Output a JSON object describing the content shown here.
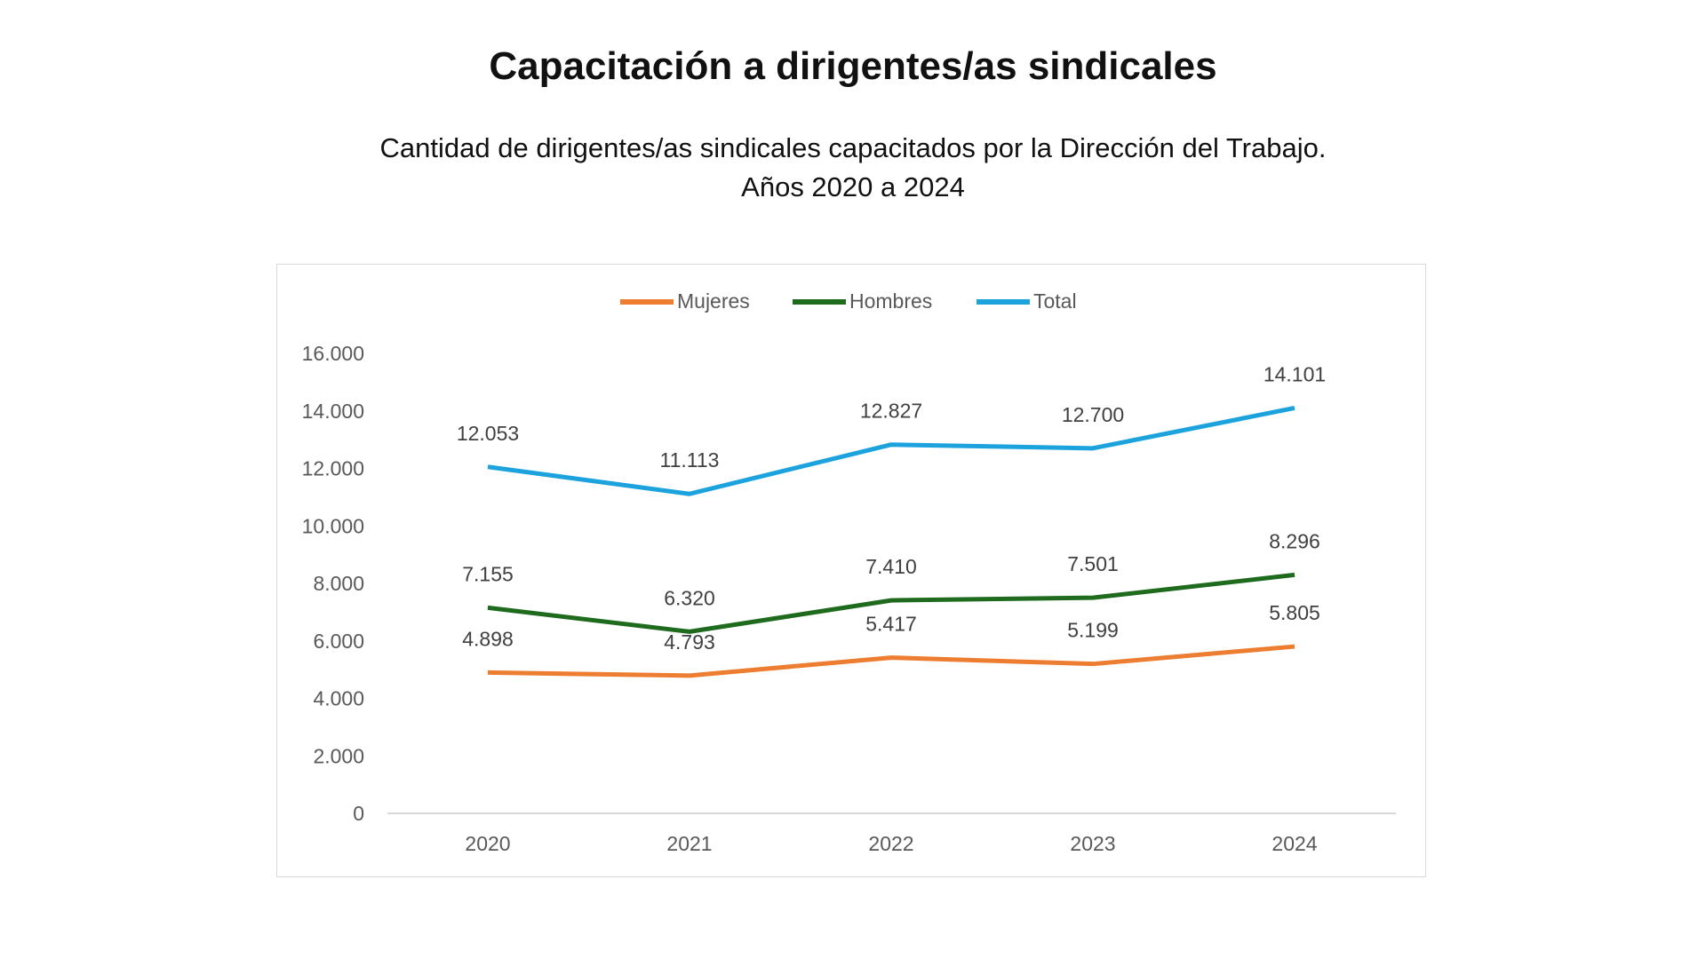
{
  "chart_data": {
    "type": "line",
    "title": "Capacitación a dirigentes/as sindicales",
    "subtitle_lines": [
      "Cantidad de dirigentes/as sindicales capacitados por la Dirección del Trabajo.",
      "Años 2020 a 2024"
    ],
    "categories": [
      "2020",
      "2021",
      "2022",
      "2023",
      "2024"
    ],
    "series": [
      {
        "name": "Mujeres",
        "color": "#ED7D31",
        "values": [
          4898,
          4793,
          5417,
          5199,
          5805
        ],
        "labels": [
          "4.898",
          "4.793",
          "5.417",
          "5.199",
          "5.805"
        ]
      },
      {
        "name": "Hombres",
        "color": "#1E6B1E",
        "values": [
          7155,
          6320,
          7410,
          7501,
          8296
        ],
        "labels": [
          "7.155",
          "6.320",
          "7.410",
          "7.501",
          "8.296"
        ]
      },
      {
        "name": "Total",
        "color": "#1CA3DE",
        "values": [
          12053,
          11113,
          12827,
          12700,
          14101
        ],
        "labels": [
          "12.053",
          "11.113",
          "12.827",
          "12.700",
          "14.101"
        ]
      }
    ],
    "ylim": [
      0,
      16000
    ],
    "yticks": [
      0,
      2000,
      4000,
      6000,
      8000,
      10000,
      12000,
      14000,
      16000
    ],
    "ytick_labels": [
      "0",
      "2.000",
      "4.000",
      "6.000",
      "8.000",
      "10.000",
      "12.000",
      "14.000",
      "16.000"
    ],
    "legend_position": "top",
    "grid": false
  }
}
